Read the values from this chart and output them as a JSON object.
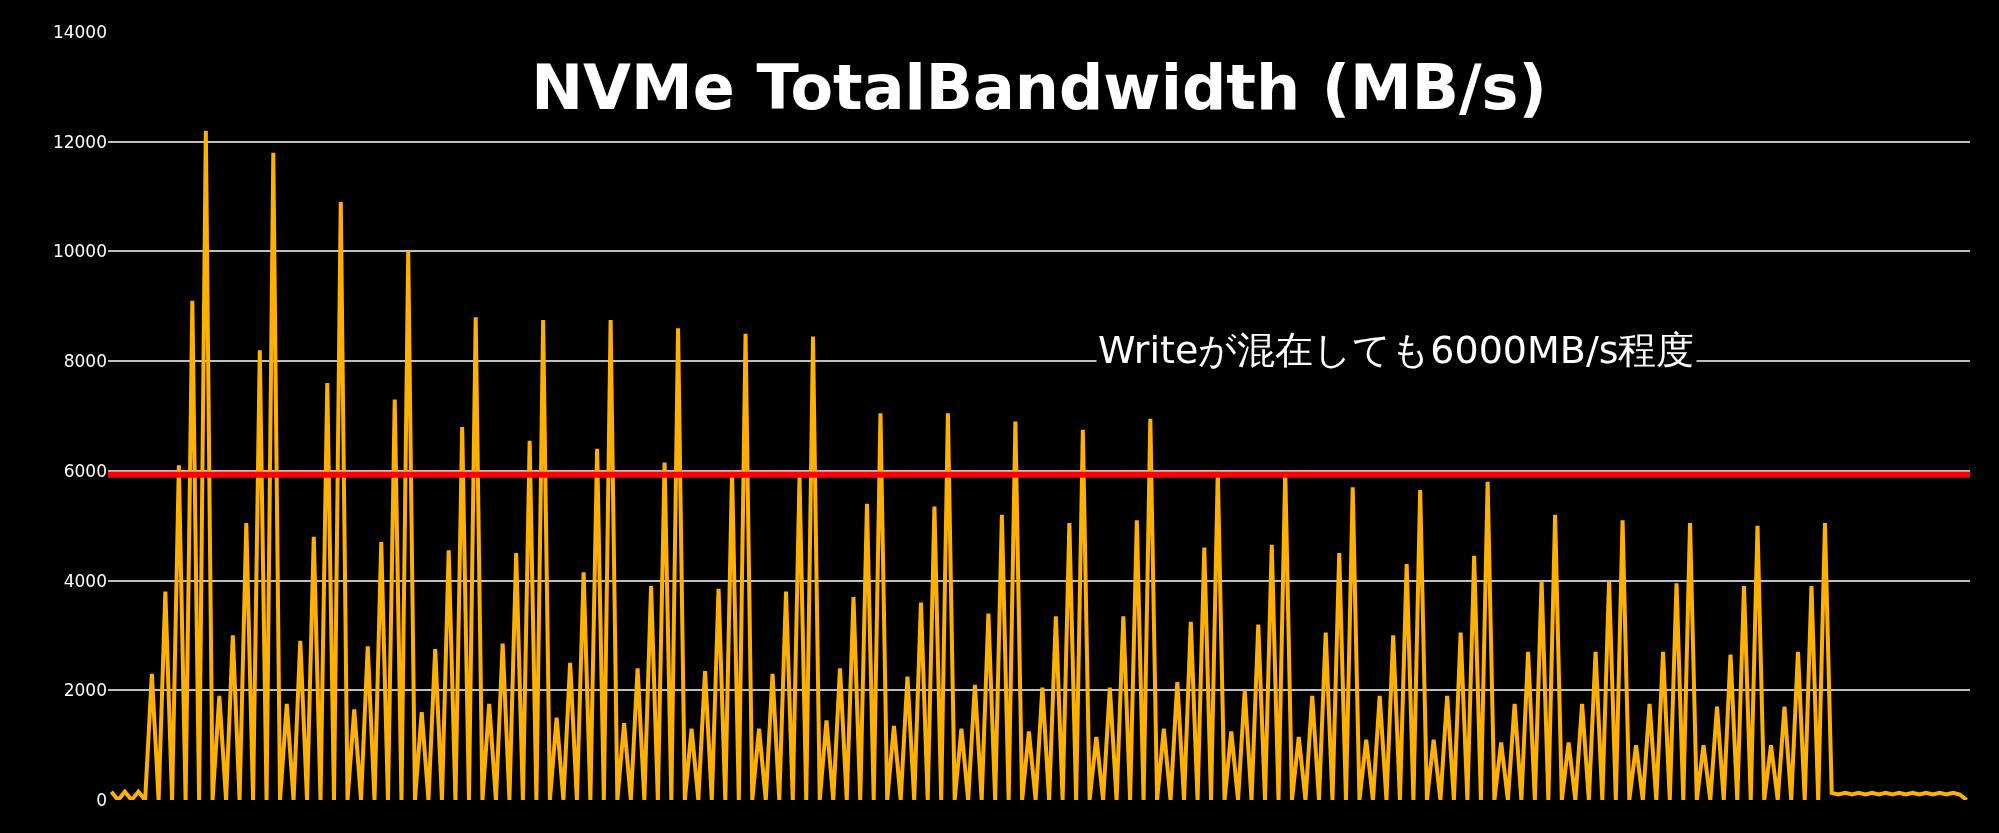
{
  "chart_data": {
    "type": "line",
    "title": "NVMe TotalBandwidth (MB/s)",
    "annotations": [
      "Writeが混在しても6000MB/s程度"
    ],
    "categories": [
      null,
      null,
      null,
      null,
      null,
      null,
      null,
      null,
      null,
      null,
      null,
      null,
      null,
      null,
      null,
      null,
      null,
      null,
      null,
      null,
      null,
      null,
      null,
      null,
      null,
      null,
      null,
      null,
      null,
      null,
      null,
      null,
      null,
      null,
      null,
      null,
      null,
      null,
      null,
      null,
      null,
      null,
      null,
      null,
      null,
      null,
      null,
      null,
      null,
      null,
      null,
      null,
      null,
      null,
      null,
      null,
      null,
      null,
      null,
      null,
      null,
      null,
      null,
      null,
      null,
      null,
      null,
      null,
      null,
      null,
      null,
      null,
      null,
      null,
      null,
      null,
      null,
      null,
      null,
      null,
      null,
      null,
      null,
      null,
      null,
      null,
      null,
      null,
      null,
      null,
      null,
      null,
      null,
      null,
      null,
      null,
      null,
      null,
      null,
      null,
      null,
      null,
      null,
      null,
      null,
      null,
      null,
      null,
      null,
      null,
      null,
      null,
      null,
      null,
      null,
      null,
      null,
      null,
      null,
      null,
      null,
      null,
      null,
      null,
      null,
      null,
      null,
      null,
      null,
      null,
      null,
      null,
      null,
      null,
      null,
      null,
      null,
      null,
      null,
      null,
      null,
      null,
      null,
      null,
      null,
      null,
      null,
      null,
      null,
      null,
      null,
      null,
      null,
      null,
      null,
      null,
      null,
      null,
      null,
      null,
      null,
      null,
      null,
      null,
      null,
      null,
      null,
      null,
      null,
      null,
      null,
      null,
      null,
      null,
      null,
      null,
      null,
      null,
      null,
      null,
      null,
      null,
      null,
      null,
      null,
      null,
      null,
      null,
      null,
      null,
      null,
      null,
      null,
      null,
      null,
      null,
      null,
      null,
      null,
      null,
      null,
      null,
      null,
      null,
      null,
      null,
      null,
      null,
      null,
      null,
      null,
      null,
      null,
      null,
      null,
      null,
      null,
      null,
      null,
      null,
      null,
      null,
      null,
      null,
      null,
      null,
      null,
      null,
      null,
      null,
      null,
      null,
      null,
      null,
      null,
      null,
      null,
      null,
      null,
      null,
      null,
      null,
      null,
      null,
      null,
      null,
      null,
      null,
      null,
      null,
      null,
      null,
      null,
      null,
      null,
      null,
      null,
      null,
      null,
      null,
      null,
      null,
      null,
      null,
      null,
      null,
      null,
      null,
      null,
      null,
      null,
      null,
      null,
      null,
      null,
      null
    ],
    "values": [
      150,
      0,
      150,
      0,
      150,
      0,
      2300,
      0,
      3800,
      0,
      6100,
      0,
      9100,
      0,
      12200,
      0,
      1900,
      0,
      3000,
      0,
      5050,
      0,
      8200,
      0,
      11800,
      0,
      1750,
      0,
      2900,
      0,
      4800,
      0,
      7600,
      0,
      10900,
      0,
      1650,
      0,
      2800,
      0,
      4700,
      0,
      7300,
      0,
      10000,
      0,
      1600,
      0,
      2750,
      0,
      4550,
      0,
      6800,
      0,
      8800,
      0,
      1750,
      0,
      2850,
      0,
      4500,
      0,
      6550,
      0,
      8750,
      0,
      1500,
      0,
      2500,
      0,
      4150,
      0,
      6400,
      0,
      8750,
      0,
      1400,
      0,
      2400,
      0,
      3900,
      0,
      6150,
      0,
      8600,
      0,
      1300,
      0,
      2350,
      0,
      3850,
      0,
      6000,
      0,
      8500,
      0,
      1300,
      0,
      2300,
      0,
      3800,
      0,
      5900,
      0,
      8450,
      0,
      1450,
      0,
      2400,
      0,
      3700,
      0,
      5400,
      0,
      7050,
      0,
      1350,
      0,
      2250,
      0,
      3600,
      0,
      5350,
      0,
      7050,
      0,
      1300,
      0,
      2100,
      0,
      3400,
      0,
      5200,
      0,
      6900,
      0,
      1250,
      0,
      2050,
      0,
      3350,
      0,
      5050,
      0,
      6750,
      0,
      1150,
      0,
      2050,
      0,
      3350,
      0,
      5100,
      0,
      6950,
      0,
      1300,
      0,
      2150,
      0,
      3250,
      0,
      4600,
      0,
      6000,
      0,
      1250,
      0,
      2000,
      0,
      3200,
      0,
      4650,
      0,
      6000,
      0,
      1150,
      0,
      1900,
      0,
      3050,
      0,
      4500,
      0,
      5700,
      0,
      1100,
      0,
      1900,
      0,
      3000,
      0,
      4300,
      0,
      5650,
      0,
      1100,
      0,
      1900,
      0,
      3050,
      0,
      4450,
      0,
      5800,
      0,
      1050,
      0,
      1750,
      0,
      2700,
      0,
      4000,
      0,
      5200,
      0,
      1050,
      0,
      1750,
      0,
      2700,
      0,
      4000,
      0,
      5100,
      0,
      1000,
      0,
      1750,
      0,
      2700,
      0,
      3950,
      0,
      5050,
      0,
      1000,
      0,
      1700,
      0,
      2650,
      0,
      3900,
      0,
      5000,
      0,
      1000,
      0,
      1700,
      0,
      2700,
      0,
      3900,
      0,
      5050,
      130,
      100,
      130,
      100,
      130,
      100,
      130,
      100,
      130,
      100,
      130,
      100,
      130,
      100,
      130,
      100,
      130,
      100,
      130,
      100,
      0
    ],
    "color": "#ffb000",
    "ylim": [
      0,
      14000
    ],
    "yticks": [
      0,
      2000,
      4000,
      6000,
      8000,
      10000,
      12000,
      14000
    ],
    "grid": "y",
    "tick_labels": "y",
    "ref_lines": [
      {
        "axis": "y",
        "value": 5930,
        "color": "#ff0000"
      }
    ]
  }
}
